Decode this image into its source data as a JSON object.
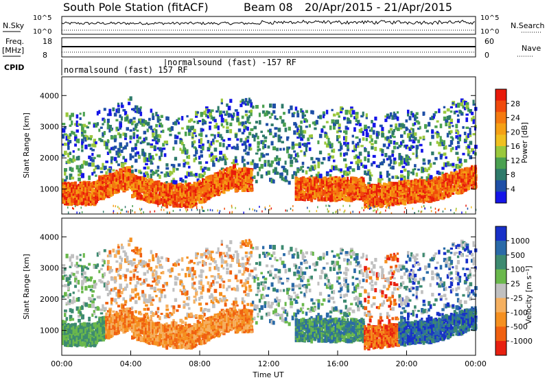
{
  "header": {
    "station": "South Pole Station (fitACF)",
    "beam": "Beam 08",
    "date_range": "20/Apr/2015 - 21/Apr/2015"
  },
  "aux_panels": {
    "nsky_label": "N.Sky",
    "nsky_ticks": [
      "10^5",
      "10^0"
    ],
    "nsearch_label": "N.Search",
    "nsearch_ticks": [
      "10^5",
      "10^0"
    ],
    "freq_label_line1": "Freq.",
    "freq_label_line2": "[MHz]",
    "freq_ticks": [
      "18",
      "8"
    ],
    "nave_label": "Nave",
    "nave_ticks": [
      "60",
      "0"
    ],
    "cpid_label": "CPID",
    "cpid_segments": [
      "normalsound (fast) 157 RF",
      "normalsound (fast) -157 RF"
    ]
  },
  "chart_data": [
    {
      "type": "heatmap",
      "title": "Power",
      "xlabel": "",
      "ylabel": "Slant Range [km]",
      "xlim": [
        0,
        24
      ],
      "ylim": [
        200,
        4600
      ],
      "yticks": [
        "1000",
        "2000",
        "3000",
        "4000"
      ],
      "colorbar_label": "Power [dB]",
      "colorbar_ticks": [
        "28",
        "24",
        "20",
        "16",
        "12",
        "8",
        "4"
      ],
      "colorbar_range": [
        0,
        30
      ],
      "colorbar_colors": [
        "#1515e8",
        "#1f4fa6",
        "#2e7a6a",
        "#4aa050",
        "#9ac83c",
        "#f0c020",
        "#f5a015",
        "#f47a10",
        "#f04a0c",
        "#e81a0a"
      ]
    },
    {
      "type": "heatmap",
      "title": "Velocity",
      "xlabel": "Time UT",
      "ylabel": "Slant Range [km]",
      "xlim": [
        0,
        24
      ],
      "ylim": [
        200,
        4600
      ],
      "xticks": [
        "00:00",
        "04:00",
        "08:00",
        "12:00",
        "16:00",
        "20:00",
        "00:00"
      ],
      "yticks": [
        "1000",
        "2000",
        "3000",
        "4000"
      ],
      "colorbar_label": "Velocity [m s⁻¹]",
      "colorbar_ticks": [
        "1000",
        "500",
        "100",
        "25",
        "-25",
        "-100",
        "-500",
        "-1000"
      ],
      "colorbar_colors": [
        "#1830c8",
        "#2a6aa8",
        "#3d8a70",
        "#6ab84c",
        "#c0c0c0",
        "#f5b060",
        "#f59020",
        "#f06010",
        "#e82010"
      ]
    }
  ],
  "colors": {
    "background": "#ffffff",
    "axis": "#000000"
  }
}
